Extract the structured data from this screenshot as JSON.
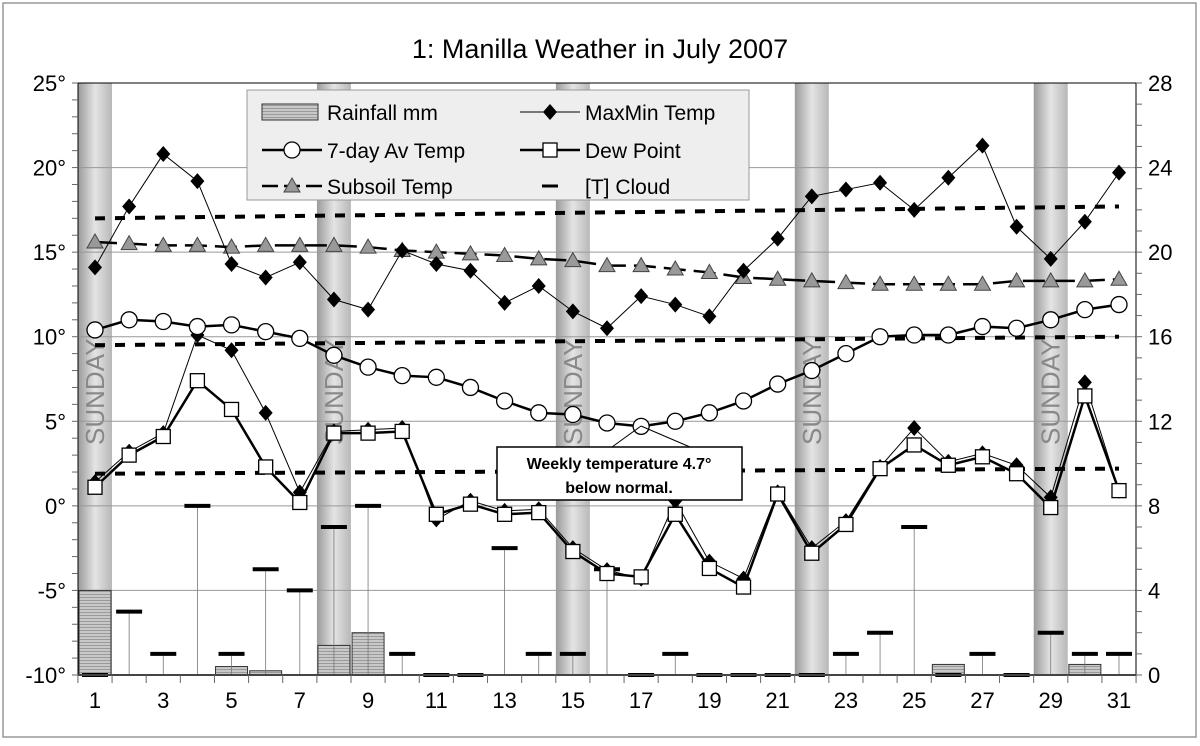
{
  "chart_data": {
    "type": "line",
    "title": "1: Manilla Weather in July 2007",
    "x": [
      1,
      2,
      3,
      4,
      5,
      6,
      7,
      8,
      9,
      10,
      11,
      12,
      13,
      14,
      15,
      16,
      17,
      18,
      19,
      20,
      21,
      22,
      23,
      24,
      25,
      26,
      27,
      28,
      29,
      30,
      31
    ],
    "x_tick_labels": [
      "1",
      "3",
      "5",
      "7",
      "9",
      "11",
      "13",
      "15",
      "17",
      "19",
      "21",
      "23",
      "25",
      "27",
      "29",
      "31"
    ],
    "y_left": {
      "range": [
        -10,
        25
      ],
      "tick_labels": [
        "-10°",
        "-5°",
        "0°",
        "5°",
        "10°",
        "15°",
        "20°",
        "25°"
      ]
    },
    "y_right": {
      "range": [
        0,
        28
      ],
      "tick_labels": [
        "0",
        "4",
        "8",
        "12",
        "16",
        "20",
        "24",
        "28"
      ]
    },
    "grid": true,
    "legend_position": "top-center",
    "sunday_label": "SUNDAY",
    "sundays": [
      1,
      8,
      15,
      22,
      29
    ],
    "series": [
      {
        "name": "Rainfall mm",
        "type": "bar",
        "axis": "right",
        "values": [
          4.0,
          0,
          0,
          0,
          0.4,
          0.2,
          0,
          1.4,
          2.0,
          0,
          0,
          0,
          0,
          0,
          0,
          0,
          0,
          0,
          0,
          0,
          0,
          0,
          0,
          0,
          0,
          0.5,
          0,
          0,
          0,
          0.5,
          0
        ]
      },
      {
        "name": "MaxMin Temp",
        "part": "max",
        "axis": "left",
        "values": [
          14.1,
          17.7,
          20.8,
          19.2,
          14.3,
          13.5,
          14.4,
          12.2,
          11.6,
          15.1,
          14.3,
          13.9,
          12.0,
          13.0,
          11.5,
          10.5,
          12.4,
          11.9,
          11.2,
          13.9,
          15.8,
          18.3,
          18.7,
          19.1,
          17.5,
          19.4,
          21.3,
          16.5,
          14.6,
          16.8,
          19.7
        ]
      },
      {
        "name": "MaxMin Temp",
        "part": "min",
        "axis": "left",
        "values": [
          1.4,
          3.2,
          4.3,
          10.1,
          9.2,
          5.5,
          0.8,
          4.4,
          4.5,
          4.6,
          -0.8,
          0.3,
          -0.3,
          -0.2,
          -2.5,
          -3.8,
          -4.3,
          0.3,
          -3.3,
          -4.3,
          0.8,
          -2.5,
          -0.9,
          2.3,
          4.6,
          2.6,
          3.1,
          2.4,
          0.5,
          7.3,
          0.9
        ]
      },
      {
        "name": "7-day Av Temp",
        "axis": "left",
        "values": [
          10.4,
          11.0,
          10.9,
          10.6,
          10.7,
          10.3,
          9.9,
          8.9,
          8.2,
          7.7,
          7.6,
          7.0,
          6.2,
          5.5,
          5.4,
          4.9,
          4.7,
          5.0,
          5.5,
          6.2,
          7.2,
          8.0,
          9.0,
          10.0,
          10.1,
          10.1,
          10.6,
          10.5,
          11.0,
          11.6,
          11.9
        ]
      },
      {
        "name": "Dew Point",
        "axis": "left",
        "values": [
          1.1,
          3.0,
          4.1,
          7.4,
          5.7,
          2.3,
          0.2,
          4.3,
          4.3,
          4.4,
          -0.5,
          0.1,
          -0.5,
          -0.4,
          -2.7,
          -4.0,
          -4.2,
          -0.5,
          -3.7,
          -4.8,
          0.7,
          -2.8,
          -1.1,
          2.2,
          3.6,
          2.4,
          2.9,
          1.9,
          -0.1,
          6.5,
          0.9
        ]
      },
      {
        "name": "Subsoil Temp",
        "axis": "left",
        "values": [
          15.6,
          15.5,
          15.4,
          15.4,
          15.3,
          15.4,
          15.4,
          15.4,
          15.3,
          15.1,
          15.0,
          14.9,
          14.8,
          14.6,
          14.5,
          14.2,
          14.2,
          14.0,
          13.8,
          13.5,
          13.4,
          13.3,
          13.2,
          13.1,
          13.1,
          13.1,
          13.1,
          13.3,
          13.3,
          13.3,
          13.4
        ]
      },
      {
        "name": "[T] Cloud",
        "type": "dash",
        "axis": "right",
        "values": [
          0,
          3,
          1,
          8,
          1,
          5,
          4,
          7,
          8,
          1,
          0,
          0,
          6,
          1,
          1,
          5,
          0,
          1,
          0,
          0,
          0,
          0,
          1,
          2,
          7,
          0,
          1,
          0,
          2,
          1,
          1
        ]
      },
      {
        "type": "dotted",
        "axis": "left",
        "values_start_end": [
          17.0,
          17.7
        ]
      },
      {
        "type": "dotted",
        "axis": "left",
        "values_start_end": [
          9.5,
          10.0
        ]
      },
      {
        "type": "dotted",
        "axis": "left",
        "values_start_end": [
          1.9,
          2.2
        ]
      }
    ],
    "annotation": {
      "line1": "Weekly temperature 4.7°",
      "line2": "below normal.",
      "points_to_day": 17
    }
  }
}
